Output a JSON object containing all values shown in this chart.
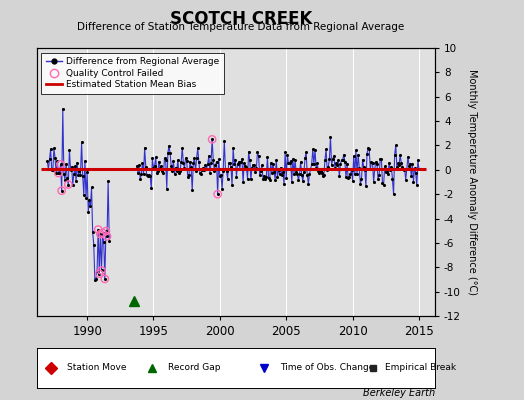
{
  "title": "SCOTCH CREEK",
  "subtitle": "Difference of Station Temperature Data from Regional Average",
  "ylabel_right": "Monthly Temperature Anomaly Difference (°C)",
  "xlim": [
    1986.2,
    2016.2
  ],
  "ylim": [
    -12,
    10
  ],
  "yticks": [
    -12,
    -10,
    -8,
    -6,
    -4,
    -2,
    0,
    2,
    4,
    6,
    8,
    10
  ],
  "xticks": [
    1990,
    1995,
    2000,
    2005,
    2010,
    2015
  ],
  "bias_level": 0.1,
  "bias_start": 1986.5,
  "bias_end": 2015.5,
  "record_gap_x": 1993.5,
  "record_gap_y": -10.8,
  "bg_color": "#d4d4d4",
  "plot_bg_color": "#e0e0e0",
  "grid_color": "#ffffff",
  "line_color": "#3333cc",
  "dot_color": "#000000",
  "bias_color": "#cc0000",
  "qc_color": "#ff69b4",
  "station_move_color": "#cc0000",
  "record_gap_color": "#006600",
  "time_change_color": "#0000cc",
  "empirical_color": "#222222",
  "watermark": "Berkeley Earth",
  "seed": 42,
  "early_seg_start": 1987.0,
  "early_seg_end": 1991.75,
  "late_seg_start": 1993.75,
  "late_seg_end": 2015.08
}
